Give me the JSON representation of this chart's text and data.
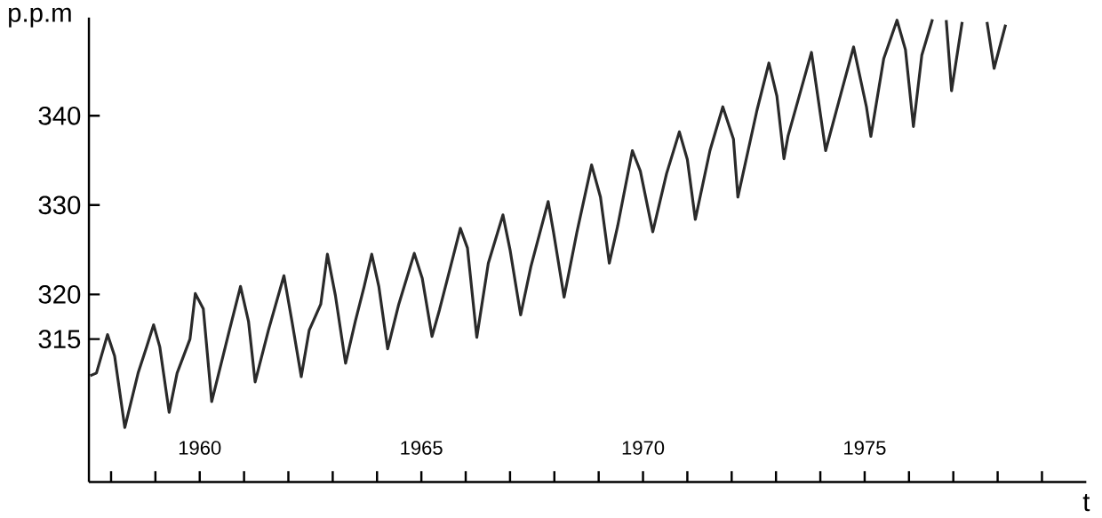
{
  "chart_data": {
    "type": "line",
    "xlabel": "t",
    "ylabel": "p.p.m",
    "xlim": [
      1957.5,
      1980
    ],
    "ylim": [
      299,
      351
    ],
    "xticks": [
      {
        "value": 1958,
        "label": null
      },
      {
        "value": 1959,
        "label": null
      },
      1960,
      {
        "value": 1961,
        "label": null
      },
      {
        "value": 1962,
        "label": null
      },
      {
        "value": 1963,
        "label": null
      },
      {
        "value": 1964,
        "label": null
      },
      1965,
      {
        "value": 1966,
        "label": null
      },
      {
        "value": 1967,
        "label": null
      },
      {
        "value": 1968,
        "label": null
      },
      {
        "value": 1969,
        "label": null
      },
      1970,
      {
        "value": 1971,
        "label": null
      },
      {
        "value": 1972,
        "label": null
      },
      {
        "value": 1973,
        "label": null
      },
      {
        "value": 1974,
        "label": null
      },
      1975,
      {
        "value": 1976,
        "label": null
      },
      {
        "value": 1977,
        "label": null
      },
      {
        "value": 1978,
        "label": null
      },
      {
        "value": 1979,
        "label": null
      }
    ],
    "yticks": [
      315,
      320,
      330,
      340
    ],
    "grid": false,
    "marker": "none",
    "line_style": "solid",
    "series": [
      {
        "color": "#2a2a2a",
        "x": [
          1957.53,
          1957.67,
          1957.92,
          1958.08,
          1958.31,
          1958.61,
          1958.8,
          1958.96,
          1959.1,
          1959.31,
          1959.49,
          1959.78,
          1959.9,
          1960.08,
          1960.27,
          1960.67,
          1960.92,
          1961.1,
          1961.25,
          1961.55,
          1961.9,
          1962.08,
          1962.29,
          1962.47,
          1962.73,
          1962.88,
          1963.06,
          1963.29,
          1963.51,
          1963.71,
          1963.88,
          1964.04,
          1964.24,
          1964.49,
          1964.84,
          1965.02,
          1965.24,
          1965.41,
          1965.88,
          1966.04,
          1966.25,
          1966.51,
          1966.84,
          1967.0,
          1967.24,
          1967.47,
          1967.86,
          1967.98,
          1968.22,
          1968.51,
          1968.84,
          1969.04,
          1969.24,
          1969.43,
          1969.76,
          1969.94,
          1970.22,
          1970.53,
          1970.82,
          1971.0,
          1971.18,
          1971.51,
          1971.8,
          1972.04,
          1972.14,
          1972.57,
          1972.84,
          1973.02,
          1973.18,
          1973.27,
          1973.8,
          1974.12,
          1974.45,
          1974.75,
          1975.04,
          1975.14,
          1975.43,
          1975.73,
          1975.92,
          1976.1,
          1976.29,
          1976.53,
          1976.7,
          1976.84,
          1976.96,
          1977.2,
          1977.4,
          1977.76,
          1977.92,
          1978.18
        ],
        "values": [
          310.9,
          311.2,
          315.5,
          313.1,
          305.1,
          311.2,
          314.1,
          316.6,
          314.1,
          306.8,
          311.2,
          315.0,
          320.1,
          318.4,
          308.0,
          316.0,
          320.9,
          317.0,
          310.2,
          316.0,
          322.1,
          317.0,
          310.8,
          316.0,
          318.9,
          324.5,
          319.9,
          312.3,
          317.0,
          320.9,
          324.5,
          320.9,
          313.9,
          318.9,
          324.6,
          321.8,
          315.3,
          318.3,
          327.4,
          325.2,
          315.2,
          323.5,
          328.9,
          325.0,
          317.7,
          323.1,
          330.4,
          327.0,
          319.7,
          327.0,
          334.5,
          330.9,
          323.5,
          327.7,
          336.1,
          333.8,
          327.0,
          333.5,
          338.2,
          335.1,
          328.4,
          336.1,
          341.0,
          337.4,
          330.9,
          340.6,
          345.9,
          342.2,
          335.2,
          337.7,
          347.1,
          336.1,
          342.2,
          347.7,
          341.0,
          337.7,
          346.4,
          350.7,
          347.4,
          338.8,
          346.8,
          350.8,
          null,
          350.7,
          342.8,
          350.5,
          null,
          350.5,
          345.3,
          350.2
        ]
      }
    ]
  }
}
